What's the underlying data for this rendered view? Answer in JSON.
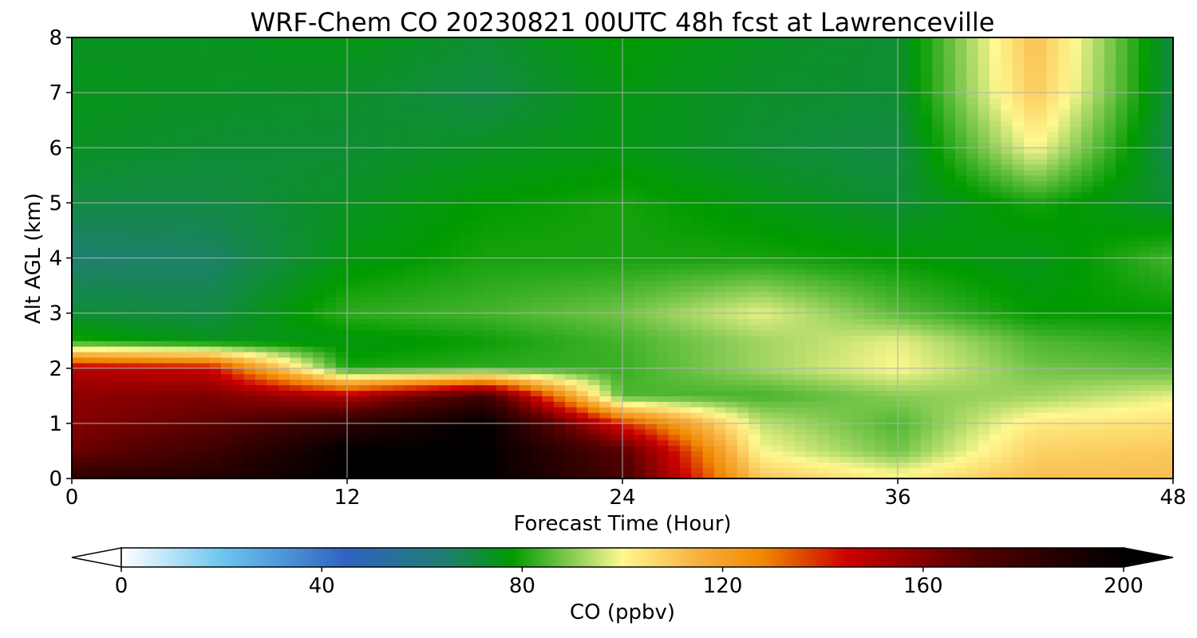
{
  "chart_data": {
    "type": "heatmap",
    "title": "WRF-Chem CO  20230821 00UTC 48h fcst at Lawrenceville",
    "xlabel": "Forecast Time (Hour)",
    "ylabel": "Alt AGL (km)",
    "xlim": [
      0,
      48
    ],
    "ylim": [
      0,
      8
    ],
    "x_ticks": [
      "0",
      "12",
      "24",
      "36",
      "48"
    ],
    "y_ticks": [
      "0",
      "1",
      "2",
      "3",
      "4",
      "5",
      "6",
      "7",
      "8"
    ],
    "grid": true,
    "x": [
      0,
      6,
      12,
      18,
      24,
      30,
      36,
      42,
      48
    ],
    "y": [
      0,
      0.5,
      1,
      1.5,
      2,
      2.5,
      3,
      4,
      5,
      6,
      7,
      8
    ],
    "z": [
      [
        185,
        188,
        200,
        200,
        175,
        110,
        102,
        112,
        112
      ],
      [
        165,
        178,
        200,
        200,
        170,
        100,
        88,
        108,
        110
      ],
      [
        160,
        168,
        185,
        200,
        140,
        95,
        85,
        103,
        105
      ],
      [
        158,
        162,
        150,
        178,
        85,
        84,
        90,
        92,
        98
      ],
      [
        150,
        145,
        80,
        82,
        83,
        92,
        100,
        88,
        86
      ],
      [
        80,
        75,
        76,
        79,
        84,
        92,
        98,
        85,
        82
      ],
      [
        72,
        70,
        82,
        84,
        88,
        98,
        86,
        78,
        78
      ],
      [
        65,
        66,
        76,
        80,
        80,
        80,
        78,
        75,
        84
      ],
      [
        70,
        70,
        74,
        78,
        80,
        76,
        72,
        80,
        72
      ],
      [
        74,
        72,
        72,
        74,
        76,
        72,
        70,
        100,
        68
      ],
      [
        75,
        74,
        73,
        70,
        76,
        73,
        72,
        110,
        70
      ],
      [
        74,
        74,
        76,
        72,
        78,
        74,
        72,
        112,
        70
      ]
    ],
    "colorbar": {
      "label": "CO  (ppbv)",
      "ticks": [
        "0",
        "40",
        "80",
        "120",
        "160",
        "200"
      ],
      "min": 0,
      "max": 200,
      "extend": "both",
      "stops": [
        {
          "v": 0,
          "c": "#ffffff"
        },
        {
          "v": 20,
          "c": "#6cc6f0"
        },
        {
          "v": 45,
          "c": "#2f63c0"
        },
        {
          "v": 65,
          "c": "#1f7f70"
        },
        {
          "v": 78,
          "c": "#009a00"
        },
        {
          "v": 90,
          "c": "#88cc55"
        },
        {
          "v": 100,
          "c": "#fff890"
        },
        {
          "v": 115,
          "c": "#f8b040"
        },
        {
          "v": 128,
          "c": "#f08800"
        },
        {
          "v": 145,
          "c": "#cc0000"
        },
        {
          "v": 170,
          "c": "#550000"
        },
        {
          "v": 200,
          "c": "#000000"
        }
      ]
    }
  }
}
